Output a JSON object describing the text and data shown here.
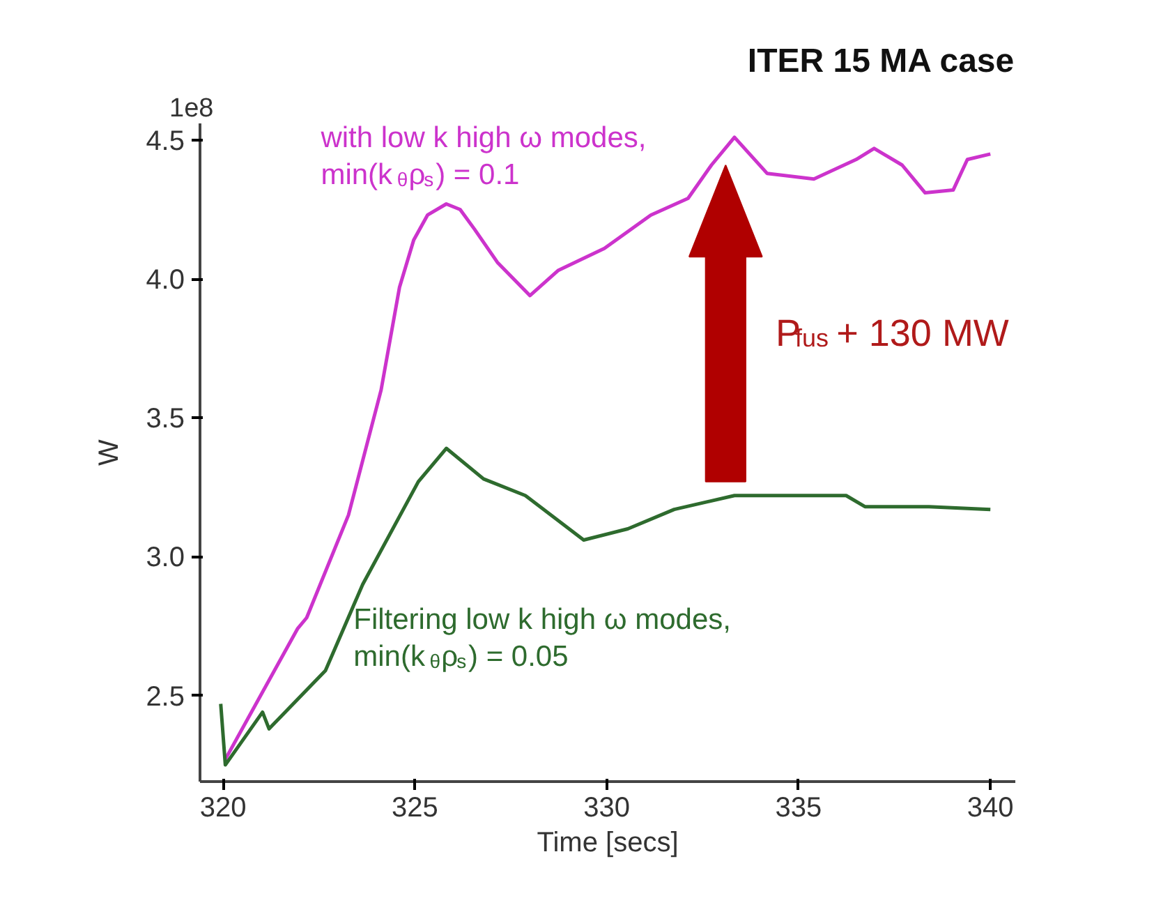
{
  "chart_data": {
    "type": "line",
    "title": "ITER 15 MA case",
    "xlabel": "Time [secs]",
    "ylabel": "W",
    "xlim": [
      319.4,
      340.65
    ],
    "ylim": [
      2.19,
      4.56
    ],
    "xticks": [
      320,
      325,
      330,
      335,
      340
    ],
    "yticks": [
      {
        "value": 2.5,
        "label": "2.5"
      },
      {
        "value": 3.0,
        "label": "3.0"
      },
      {
        "value": 3.5,
        "label": "3.5"
      },
      {
        "value": 4.0,
        "label": "4.0"
      },
      {
        "value": 4.5,
        "label": "4.5"
      }
    ],
    "grid": false,
    "line_style": "solid",
    "marker": "none",
    "annotations": [
      "1e8",
      "P$_{fus}$ + 130 MW"
    ],
    "series": [
      {
        "name": "with low k high ω modes,\nmin(k$_{θ}$ρ$_{s}$) = 0.1",
        "color": "#cc33cc",
        "x": [
          320.06,
          321.94,
          322.18,
          323.27,
          324.12,
          324.6,
          324.97,
          325.33,
          325.82,
          326.18,
          326.55,
          327.15,
          328.0,
          328.73,
          329.94,
          331.15,
          332.12,
          332.73,
          333.33,
          334.18,
          335.4,
          336.5,
          336.97,
          337.7,
          338.3,
          339.03,
          339.4,
          340.0
        ],
        "values": [
          2.27,
          2.74,
          2.78,
          3.15,
          3.6,
          3.97,
          4.14,
          4.23,
          4.27,
          4.25,
          4.18,
          4.06,
          3.94,
          4.03,
          4.11,
          4.23,
          4.29,
          4.41,
          4.51,
          4.38,
          4.36,
          4.43,
          4.47,
          4.41,
          4.31,
          4.32,
          4.43,
          4.45
        ]
      },
      {
        "name": "Filtering low k high ω modes,\nmin(k$_{θ}$ρ$_{s}$) = 0.05",
        "color": "#2e6b2e",
        "x": [
          319.94,
          320.06,
          321.03,
          321.2,
          322.67,
          323.64,
          325.09,
          325.82,
          326.79,
          327.88,
          329.4,
          330.55,
          331.76,
          333.33,
          336.24,
          336.73,
          338.4,
          340.0
        ],
        "values": [
          2.47,
          2.25,
          2.44,
          2.38,
          2.59,
          2.9,
          3.27,
          3.39,
          3.28,
          3.22,
          3.06,
          3.1,
          3.17,
          3.22,
          3.22,
          3.18,
          3.18,
          3.17
        ]
      }
    ]
  }
}
